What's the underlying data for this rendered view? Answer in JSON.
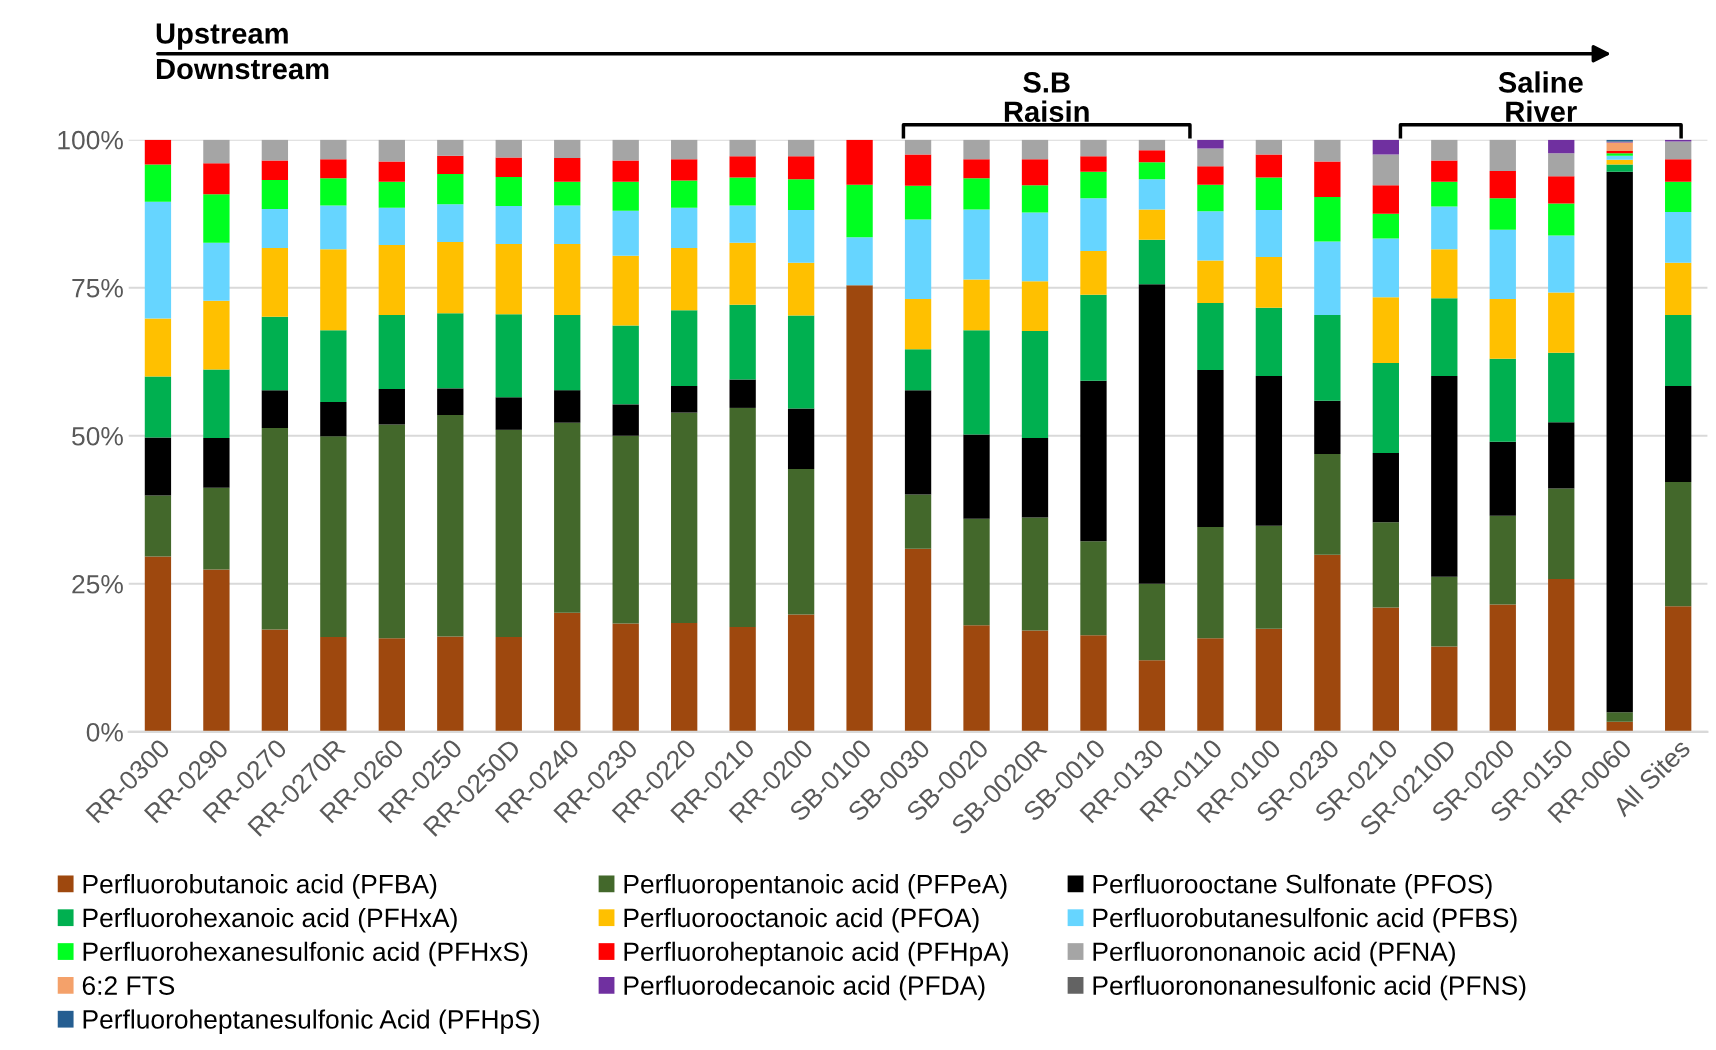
{
  "chart_data": {
    "type": "bar",
    "stacked": true,
    "categories": [
      "RR-0300",
      "RR-0290",
      "RR-0270",
      "RR-0270R",
      "RR-0260",
      "RR-0250",
      "RR-0250D",
      "RR-0240",
      "RR-0230",
      "RR-0220",
      "RR-0210",
      "RR-0200",
      "SB-0100",
      "SB-0030",
      "SB-0020",
      "SB-0020R",
      "SB-0010",
      "RR-0130",
      "RR-0110",
      "RR-0100",
      "SR-0230",
      "SR-0210",
      "SR-0210D",
      "SR-0200",
      "SR-0150",
      "RR-0060",
      "All Sites"
    ],
    "series": [
      {
        "name": "Perfluorobutanoic acid (PFBA)",
        "color": "#9e480e",
        "values": [
          29.6,
          27.4,
          17.3,
          16.0,
          15.8,
          16.1,
          16.0,
          20.1,
          18.3,
          18.4,
          17.7,
          19.8,
          75.4,
          30.9,
          18.0,
          17.1,
          16.3,
          12.1,
          15.8,
          17.4,
          29.9,
          21.0,
          14.4,
          21.5,
          25.8,
          1.7,
          21.2
        ]
      },
      {
        "name": "Perfluoropentanoic acid (PFPeA)",
        "color": "#43682b",
        "values": [
          10.3,
          13.8,
          34.0,
          33.9,
          36.1,
          37.4,
          35.0,
          32.1,
          31.7,
          35.5,
          37.0,
          24.6,
          0,
          9.2,
          18.0,
          19.1,
          15.9,
          12.9,
          18.8,
          17.4,
          17.0,
          14.4,
          11.8,
          15.0,
          15.3,
          1.6,
          21.0
        ]
      },
      {
        "name": "Perfluorooctane Sulfonate (PFOS)",
        "color": "#000000",
        "values": [
          9.8,
          8.4,
          6.4,
          5.8,
          6.0,
          4.5,
          5.5,
          5.5,
          5.3,
          4.5,
          4.8,
          10.2,
          0,
          17.6,
          14.2,
          13.4,
          27.1,
          50.6,
          26.5,
          25.3,
          9.0,
          11.7,
          33.9,
          12.5,
          11.2,
          91.3,
          16.2
        ]
      },
      {
        "name": "Perfluorohexanoic acid (PFHxA)",
        "color": "#00b050",
        "values": [
          10.3,
          11.6,
          12.4,
          12.1,
          12.5,
          12.7,
          14.0,
          12.7,
          13.3,
          12.8,
          12.6,
          15.7,
          0,
          6.9,
          17.6,
          18.1,
          14.5,
          7.5,
          11.3,
          11.5,
          14.5,
          15.2,
          13.1,
          14.0,
          11.7,
          1.2,
          12.0
        ]
      },
      {
        "name": "Perfluorooctanoic acid (PFOA)",
        "color": "#ffc000",
        "values": [
          9.8,
          11.6,
          11.6,
          13.7,
          11.8,
          12.0,
          11.9,
          12.0,
          11.8,
          10.5,
          10.5,
          8.9,
          0,
          8.5,
          8.6,
          8.4,
          7.4,
          5.1,
          7.2,
          8.6,
          0,
          11.1,
          8.3,
          10.1,
          10.2,
          0.8,
          8.8
        ]
      },
      {
        "name": "Perfluorobutanesulfonic acid (PFBS)",
        "color": "#66d5ff",
        "values": [
          19.7,
          9.8,
          6.6,
          7.4,
          6.3,
          6.4,
          6.4,
          6.5,
          7.6,
          6.8,
          6.3,
          8.9,
          8.1,
          13.4,
          11.8,
          11.6,
          8.9,
          5.1,
          8.3,
          7.9,
          12.4,
          9.9,
          7.2,
          11.7,
          9.6,
          0.7,
          8.6
        ]
      },
      {
        "name": "Perfluorohexanesulfonic acid (PFHxS)",
        "color": "#00ff21",
        "values": [
          6.3,
          8.2,
          4.9,
          4.6,
          4.4,
          5.1,
          4.9,
          4.0,
          4.9,
          4.6,
          4.7,
          5.2,
          8.9,
          5.7,
          5.3,
          4.6,
          4.5,
          2.9,
          4.5,
          5.5,
          7.5,
          4.2,
          4.2,
          5.3,
          5.4,
          0.4,
          5.1
        ]
      },
      {
        "name": "Perfluoroheptanoic acid (PFHpA)",
        "color": "#ff0000",
        "values": [
          4.2,
          5.2,
          3.3,
          3.2,
          3.4,
          3.1,
          3.3,
          4.0,
          3.6,
          3.6,
          3.6,
          3.9,
          7.6,
          5.3,
          3.2,
          4.4,
          2.6,
          2.0,
          3.1,
          3.9,
          6.0,
          4.8,
          3.6,
          4.6,
          4.6,
          0.4,
          3.8
        ]
      },
      {
        "name": "Perfluorononanoic acid (PFNA)",
        "color": "#a5a5a5",
        "values": [
          0,
          4.0,
          3.5,
          3.3,
          3.7,
          2.7,
          3.0,
          3.1,
          3.5,
          3.3,
          2.8,
          2.8,
          0,
          2.5,
          3.3,
          3.3,
          2.8,
          1.8,
          3.0,
          2.5,
          3.7,
          5.2,
          3.5,
          5.3,
          3.9,
          null,
          3.0
        ]
      },
      {
        "name": "6:2 FTS",
        "color": "#f4a16a",
        "values": [
          0,
          0,
          0,
          0,
          0,
          0,
          0,
          0,
          0,
          0,
          0,
          0,
          0,
          0,
          0,
          0,
          0,
          0,
          0,
          0,
          0,
          0,
          0,
          0,
          0,
          1.4,
          0
        ]
      },
      {
        "name": "Perfluorodecanoic acid (PFDA)",
        "color": "#7030a0",
        "values": [
          0,
          0,
          0,
          0,
          0,
          0,
          0,
          0,
          0,
          0,
          0,
          0,
          0,
          0,
          0,
          0,
          0,
          0,
          1.5,
          0,
          0,
          2.5,
          0,
          0,
          2.3,
          0.1,
          0.3
        ]
      },
      {
        "name": "Perfluorononanesulfonic acid (PFNS)",
        "color": "#636363",
        "values": [
          0,
          0,
          0,
          0,
          0,
          0,
          0,
          0,
          0,
          0,
          0,
          0,
          0,
          0,
          0,
          0,
          0,
          0,
          0,
          0,
          0,
          0,
          0,
          0,
          0,
          0.1,
          0
        ]
      },
      {
        "name": "Perfluoroheptanesulfonic Acid (PFHpS)",
        "color": "#255e91",
        "values": [
          0,
          0,
          0,
          0,
          0,
          0,
          0,
          0,
          0,
          0,
          0,
          0,
          0,
          0,
          0,
          0,
          0,
          0,
          0,
          0,
          0,
          0,
          0,
          0,
          0,
          0.3,
          0
        ]
      }
    ],
    "ylim": [
      0,
      100
    ],
    "yticks": [
      {
        "value": 0,
        "label": "0%"
      },
      {
        "value": 25,
        "label": "25%"
      },
      {
        "value": 50,
        "label": "50%"
      },
      {
        "value": 75,
        "label": "75%"
      },
      {
        "value": 100,
        "label": "100%"
      }
    ],
    "grid": "y",
    "legend": "bottom",
    "annotations": [
      "Upstream",
      "Downstream",
      "S.B\nRaisin",
      "Saline\nRiver"
    ]
  }
}
